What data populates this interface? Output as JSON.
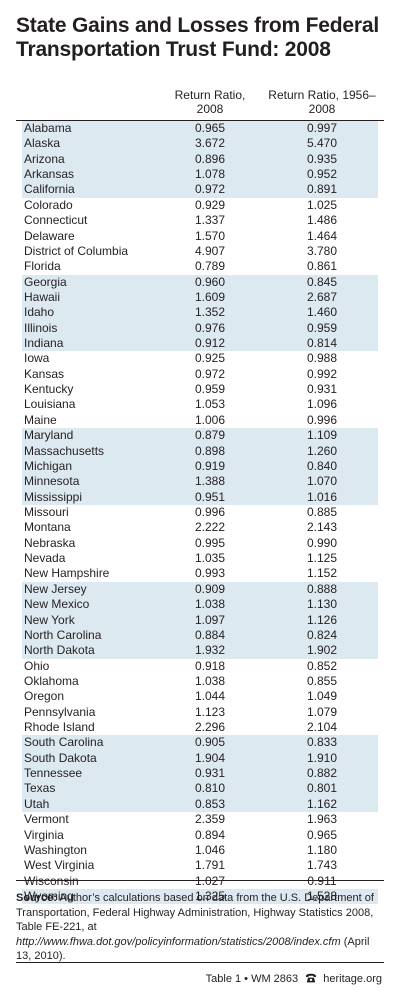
{
  "title": "State Gains and Losses from Federal Transportation Trust Fund: 2008",
  "columns": {
    "col1": "Return Ratio, 2008",
    "col2": "Return Ratio, 1956–2008"
  },
  "rows": [
    {
      "state": "Alabama",
      "r2008": "0.965",
      "r1956": "0.997",
      "shaded": true
    },
    {
      "state": "Alaska",
      "r2008": "3.672",
      "r1956": "5.470",
      "shaded": true
    },
    {
      "state": "Arizona",
      "r2008": "0.896",
      "r1956": "0.935",
      "shaded": true
    },
    {
      "state": "Arkansas",
      "r2008": "1.078",
      "r1956": "0.952",
      "shaded": true
    },
    {
      "state": "California",
      "r2008": "0.972",
      "r1956": "0.891",
      "shaded": true
    },
    {
      "state": "Colorado",
      "r2008": "0.929",
      "r1956": "1.025",
      "shaded": false
    },
    {
      "state": "Connecticut",
      "r2008": "1.337",
      "r1956": "1.486",
      "shaded": false
    },
    {
      "state": "Delaware",
      "r2008": "1.570",
      "r1956": "1.464",
      "shaded": false
    },
    {
      "state": "District of Columbia",
      "r2008": "4.907",
      "r1956": "3.780",
      "shaded": false
    },
    {
      "state": "Florida",
      "r2008": "0.789",
      "r1956": "0.861",
      "shaded": false
    },
    {
      "state": "Georgia",
      "r2008": "0.960",
      "r1956": "0.845",
      "shaded": true
    },
    {
      "state": "Hawaii",
      "r2008": "1.609",
      "r1956": "2.687",
      "shaded": true
    },
    {
      "state": "Idaho",
      "r2008": "1.352",
      "r1956": "1.460",
      "shaded": true
    },
    {
      "state": "Illinois",
      "r2008": "0.976",
      "r1956": "0.959",
      "shaded": true
    },
    {
      "state": "Indiana",
      "r2008": "0.912",
      "r1956": "0.814",
      "shaded": true
    },
    {
      "state": "Iowa",
      "r2008": "0.925",
      "r1956": "0.988",
      "shaded": false
    },
    {
      "state": "Kansas",
      "r2008": "0.972",
      "r1956": "0.992",
      "shaded": false
    },
    {
      "state": "Kentucky",
      "r2008": "0.959",
      "r1956": "0.931",
      "shaded": false
    },
    {
      "state": "Louisiana",
      "r2008": "1.053",
      "r1956": "1.096",
      "shaded": false
    },
    {
      "state": "Maine",
      "r2008": "1.006",
      "r1956": "0.996",
      "shaded": false
    },
    {
      "state": "Maryland",
      "r2008": "0.879",
      "r1956": "1.109",
      "shaded": true
    },
    {
      "state": "Massachusetts",
      "r2008": "0.898",
      "r1956": "1.260",
      "shaded": true
    },
    {
      "state": "Michigan",
      "r2008": "0.919",
      "r1956": "0.840",
      "shaded": true
    },
    {
      "state": "Minnesota",
      "r2008": "1.388",
      "r1956": "1.070",
      "shaded": true
    },
    {
      "state": "Mississippi",
      "r2008": "0.951",
      "r1956": "1.016",
      "shaded": true
    },
    {
      "state": "Missouri",
      "r2008": "0.996",
      "r1956": "0.885",
      "shaded": false
    },
    {
      "state": "Montana",
      "r2008": "2.222",
      "r1956": "2.143",
      "shaded": false
    },
    {
      "state": "Nebraska",
      "r2008": "0.995",
      "r1956": "0.990",
      "shaded": false
    },
    {
      "state": "Nevada",
      "r2008": "1.035",
      "r1956": "1.125",
      "shaded": false
    },
    {
      "state": "New Hampshire",
      "r2008": "0.993",
      "r1956": "1.152",
      "shaded": false
    },
    {
      "state": "New Jersey",
      "r2008": "0.909",
      "r1956": "0.888",
      "shaded": true
    },
    {
      "state": "New Mexico",
      "r2008": "1.038",
      "r1956": "1.130",
      "shaded": true
    },
    {
      "state": "New York",
      "r2008": "1.097",
      "r1956": "1.126",
      "shaded": true
    },
    {
      "state": "North Carolina",
      "r2008": "0.884",
      "r1956": "0.824",
      "shaded": true
    },
    {
      "state": "North Dakota",
      "r2008": "1.932",
      "r1956": "1.902",
      "shaded": true
    },
    {
      "state": "Ohio",
      "r2008": "0.918",
      "r1956": "0.852",
      "shaded": false
    },
    {
      "state": "Oklahoma",
      "r2008": "1.038",
      "r1956": "0.855",
      "shaded": false
    },
    {
      "state": "Oregon",
      "r2008": "1.044",
      "r1956": "1.049",
      "shaded": false
    },
    {
      "state": "Pennsylvania",
      "r2008": "1.123",
      "r1956": "1.079",
      "shaded": false
    },
    {
      "state": "Rhode Island",
      "r2008": "2.296",
      "r1956": "2.104",
      "shaded": false
    },
    {
      "state": "South Carolina",
      "r2008": "0.905",
      "r1956": "0.833",
      "shaded": true
    },
    {
      "state": "South Dakota",
      "r2008": "1.904",
      "r1956": "1.910",
      "shaded": true
    },
    {
      "state": "Tennessee",
      "r2008": "0.931",
      "r1956": "0.882",
      "shaded": true
    },
    {
      "state": "Texas",
      "r2008": "0.810",
      "r1956": "0.801",
      "shaded": true
    },
    {
      "state": "Utah",
      "r2008": "0.853",
      "r1956": "1.162",
      "shaded": true
    },
    {
      "state": "Vermont",
      "r2008": "2.359",
      "r1956": "1.963",
      "shaded": false
    },
    {
      "state": "Virginia",
      "r2008": "0.894",
      "r1956": "0.965",
      "shaded": false
    },
    {
      "state": "Washington",
      "r2008": "1.046",
      "r1956": "1.180",
      "shaded": false
    },
    {
      "state": "West Virginia",
      "r2008": "1.791",
      "r1956": "1.743",
      "shaded": false
    },
    {
      "state": "Wisconsin",
      "r2008": "1.027",
      "r1956": "0.911",
      "shaded": false
    },
    {
      "state": "Wyoming",
      "r2008": "1.325",
      "r1956": "1.528",
      "shaded": true
    }
  ],
  "source": {
    "label": "Source:",
    "text": "Author’s calculations based on data from the U.S. Department of Transportation, Federal Highway Administration, Highway Statistics 2008, Table FE-221, at",
    "url": "http://www.fhwa.dot.gov/policyinformation/statistics/2008/index.cfm",
    "date": "(April 13, 2010)."
  },
  "footer": {
    "table_ref": "Table 1 • WM 2863",
    "site": "heritage.org",
    "icon": "telephone-icon"
  },
  "colors": {
    "shade": "#dde9f1",
    "text": "#231f20"
  }
}
